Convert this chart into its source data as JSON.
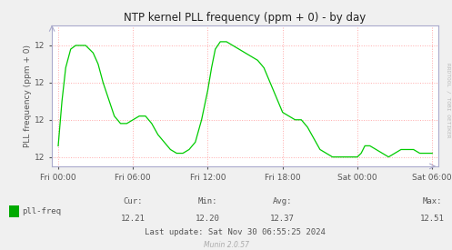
{
  "title": "NTP kernel PLL frequency (ppm + 0) - by day",
  "ylabel": "PLL frequency (ppm + 0)",
  "bg_color": "#f0f0f0",
  "plot_bg_color": "#ffffff",
  "grid_color": "#ffaaaa",
  "line_color": "#00cc00",
  "axis_color": "#aaaacc",
  "text_color": "#555555",
  "legend_label": "pll-freq",
  "legend_color": "#00aa00",
  "cur_label": "Cur:",
  "cur": "12.21",
  "min_label": "Min:",
  "min": "12.20",
  "avg_label": "Avg:",
  "avg": "12.37",
  "max_label": "Max:",
  "max": "12.51",
  "last_update": "Last update: Sat Nov 30 06:55:25 2024",
  "munin_version": "Munin 2.0.57",
  "watermark": "RRDTOOL / TOBI OETIKER",
  "x_ticks": [
    "Fri 00:00",
    "Fri 06:00",
    "Fri 12:00",
    "Fri 18:00",
    "Sat 00:00",
    "Sat 06:00"
  ],
  "x_tick_positions": [
    0,
    6,
    12,
    18,
    24,
    30
  ],
  "xlim": [
    -0.5,
    30.5
  ],
  "ylim": [
    12.175,
    12.555
  ],
  "yticks": [
    12.2,
    12.3,
    12.4,
    12.5
  ],
  "time_hours": [
    0,
    0.3,
    0.6,
    1.0,
    1.4,
    1.8,
    2.2,
    2.5,
    2.8,
    3.2,
    3.6,
    4.0,
    4.5,
    5.0,
    5.5,
    6.0,
    6.5,
    7.0,
    7.5,
    8.0,
    8.5,
    9.0,
    9.5,
    10.0,
    10.5,
    11.0,
    11.5,
    12.0,
    12.3,
    12.6,
    13.0,
    13.5,
    14.0,
    14.5,
    15.0,
    15.5,
    16.0,
    16.5,
    17.0,
    17.5,
    18.0,
    18.5,
    19.0,
    19.5,
    20.0,
    20.5,
    21.0,
    21.5,
    22.0,
    22.5,
    23.0,
    23.5,
    24.0,
    24.3,
    24.6,
    25.0,
    25.5,
    26.0,
    26.5,
    27.0,
    27.5,
    28.0,
    28.5,
    29.0,
    29.5,
    30.0
  ],
  "freq_values": [
    12.23,
    12.35,
    12.44,
    12.49,
    12.5,
    12.5,
    12.5,
    12.49,
    12.48,
    12.45,
    12.4,
    12.36,
    12.31,
    12.29,
    12.29,
    12.3,
    12.31,
    12.31,
    12.29,
    12.26,
    12.24,
    12.22,
    12.21,
    12.21,
    12.22,
    12.24,
    12.3,
    12.38,
    12.44,
    12.49,
    12.51,
    12.51,
    12.5,
    12.49,
    12.48,
    12.47,
    12.46,
    12.44,
    12.4,
    12.36,
    12.32,
    12.31,
    12.3,
    12.3,
    12.28,
    12.25,
    12.22,
    12.21,
    12.2,
    12.2,
    12.2,
    12.2,
    12.2,
    12.21,
    12.23,
    12.23,
    12.22,
    12.21,
    12.2,
    12.21,
    12.22,
    12.22,
    12.22,
    12.21,
    12.21,
    12.21
  ]
}
